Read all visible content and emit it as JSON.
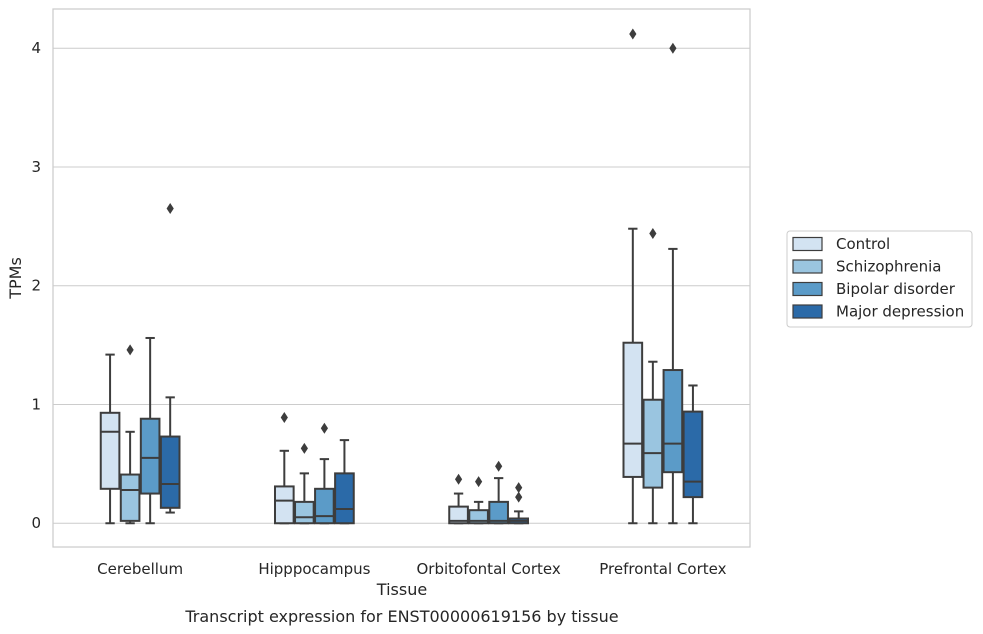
{
  "chart_data": {
    "type": "box",
    "title": "",
    "caption": "Transcript expression for ENST00000619156 by tissue",
    "xlabel": "Tissue",
    "ylabel": "TPMs",
    "ylim": [
      -0.2,
      4.33
    ],
    "yticks": [
      "0",
      "1",
      "2",
      "3",
      "4"
    ],
    "grid": "horizontal",
    "legend_position": "right",
    "categories": [
      "Cerebellum",
      "Hipppocampus",
      "Orbitofontal Cortex",
      "Prefrontal Cortex"
    ],
    "series": [
      {
        "name": "Control",
        "color": "#d3e3f2",
        "boxes": [
          {
            "whislo": 0.0,
            "q1": 0.29,
            "med": 0.77,
            "q3": 0.93,
            "whishi": 1.42,
            "fliers": []
          },
          {
            "whislo": 0.0,
            "q1": 0.0,
            "med": 0.19,
            "q3": 0.31,
            "whishi": 0.61,
            "fliers": [
              0.89
            ]
          },
          {
            "whislo": 0.0,
            "q1": 0.0,
            "med": 0.02,
            "q3": 0.14,
            "whishi": 0.25,
            "fliers": [
              0.37
            ]
          },
          {
            "whislo": 0.0,
            "q1": 0.39,
            "med": 0.67,
            "q3": 1.52,
            "whishi": 2.48,
            "fliers": [
              4.12
            ]
          }
        ]
      },
      {
        "name": "Schizophrenia",
        "color": "#9ac5e0",
        "boxes": [
          {
            "whislo": 0.0,
            "q1": 0.02,
            "med": 0.28,
            "q3": 0.41,
            "whishi": 0.77,
            "fliers": [
              1.46
            ]
          },
          {
            "whislo": 0.0,
            "q1": 0.0,
            "med": 0.05,
            "q3": 0.18,
            "whishi": 0.42,
            "fliers": [
              0.63
            ]
          },
          {
            "whislo": 0.0,
            "q1": 0.0,
            "med": 0.02,
            "q3": 0.11,
            "whishi": 0.18,
            "fliers": [
              0.35
            ]
          },
          {
            "whislo": 0.0,
            "q1": 0.3,
            "med": 0.59,
            "q3": 1.04,
            "whishi": 1.36,
            "fliers": [
              2.44
            ]
          }
        ]
      },
      {
        "name": "Bipolar disorder",
        "color": "#5b9bc8",
        "boxes": [
          {
            "whislo": 0.0,
            "q1": 0.25,
            "med": 0.55,
            "q3": 0.88,
            "whishi": 1.56,
            "fliers": []
          },
          {
            "whislo": 0.0,
            "q1": 0.0,
            "med": 0.06,
            "q3": 0.29,
            "whishi": 0.54,
            "fliers": [
              0.8
            ]
          },
          {
            "whislo": 0.0,
            "q1": 0.0,
            "med": 0.02,
            "q3": 0.18,
            "whishi": 0.38,
            "fliers": [
              0.48
            ]
          },
          {
            "whislo": 0.0,
            "q1": 0.43,
            "med": 0.67,
            "q3": 1.29,
            "whishi": 2.31,
            "fliers": [
              4.0
            ]
          }
        ]
      },
      {
        "name": "Major depression",
        "color": "#2b6aa8",
        "boxes": [
          {
            "whislo": 0.09,
            "q1": 0.13,
            "med": 0.33,
            "q3": 0.73,
            "whishi": 1.06,
            "fliers": [
              2.65
            ]
          },
          {
            "whislo": 0.0,
            "q1": 0.0,
            "med": 0.12,
            "q3": 0.42,
            "whishi": 0.7,
            "fliers": []
          },
          {
            "whislo": 0.0,
            "q1": 0.0,
            "med": 0.02,
            "q3": 0.04,
            "whishi": 0.1,
            "fliers": [
              0.3,
              0.22
            ]
          },
          {
            "whislo": 0.0,
            "q1": 0.22,
            "med": 0.35,
            "q3": 0.94,
            "whishi": 1.16,
            "fliers": []
          }
        ]
      }
    ]
  }
}
